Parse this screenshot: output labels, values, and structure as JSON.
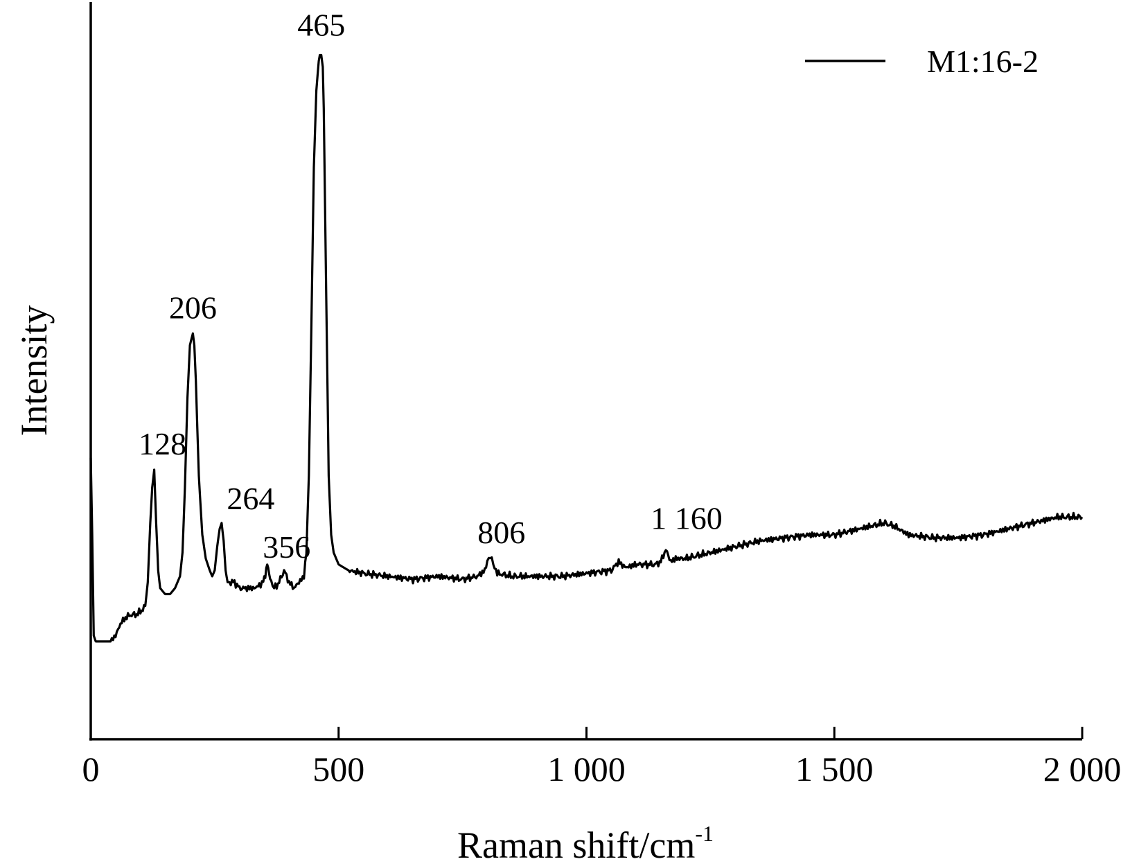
{
  "chart_data": {
    "type": "line",
    "title": "",
    "xlabel": "Raman shift/cm",
    "xlabel_superscript": "-1",
    "ylabel": "Intensity",
    "xlim": [
      0,
      2000
    ],
    "ylim": [
      0,
      100
    ],
    "x_ticks": [
      0,
      500,
      1000,
      1500,
      2000
    ],
    "x_tick_labels": [
      "0",
      "500",
      "1 000",
      "1 500",
      "2 000"
    ],
    "y_ticks_shown": false,
    "grid": false,
    "legend_position": "top-right",
    "series": [
      {
        "name": "M1:16-2",
        "color": "#000000",
        "x": [
          0,
          3,
          6,
          10,
          15,
          20,
          30,
          40,
          50,
          60,
          70,
          80,
          90,
          100,
          110,
          115,
          120,
          124,
          128,
          132,
          136,
          140,
          150,
          160,
          170,
          180,
          185,
          190,
          195,
          200,
          203,
          206,
          209,
          212,
          218,
          225,
          232,
          240,
          245,
          250,
          255,
          260,
          264,
          268,
          272,
          276,
          280,
          290,
          300,
          310,
          320,
          330,
          340,
          348,
          352,
          356,
          360,
          364,
          370,
          380,
          385,
          390,
          395,
          400,
          410,
          420,
          430,
          435,
          440,
          445,
          450,
          455,
          460,
          462,
          465,
          468,
          470,
          475,
          480,
          485,
          490,
          500,
          510,
          520,
          550,
          600,
          650,
          700,
          750,
          780,
          795,
          800,
          806,
          812,
          820,
          850,
          900,
          950,
          1000,
          1050,
          1060,
          1065,
          1070,
          1080,
          1100,
          1120,
          1140,
          1150,
          1155,
          1160,
          1165,
          1170,
          1180,
          1200,
          1250,
          1300,
          1350,
          1400,
          1450,
          1500,
          1550,
          1600,
          1620,
          1650,
          1700,
          1750,
          1800,
          1850,
          1900,
          1950,
          2000
        ],
        "y": [
          33,
          20,
          3,
          2,
          2,
          2,
          2,
          2,
          3,
          5,
          6,
          6.5,
          6.5,
          7,
          8,
          12,
          22,
          28,
          31,
          22,
          14,
          11,
          10,
          10,
          11,
          13,
          17,
          28,
          43,
          52,
          53,
          54,
          52,
          46,
          30,
          20,
          16,
          14,
          13,
          14,
          18,
          21,
          22,
          19,
          14,
          12,
          12,
          12,
          11,
          11,
          11,
          11,
          11.5,
          12,
          13,
          15,
          13,
          12,
          11,
          12,
          13,
          14,
          13,
          12,
          11,
          12,
          13,
          17,
          30,
          55,
          82,
          95,
          100,
          101,
          101,
          99,
          92,
          60,
          30,
          20,
          17,
          15,
          14.5,
          14,
          13.5,
          13,
          12.5,
          13,
          12.5,
          13,
          14,
          15.5,
          16.5,
          15,
          13.5,
          13,
          13,
          13,
          13.5,
          14,
          15,
          15.5,
          15,
          14.5,
          15,
          15,
          15,
          15.5,
          16.5,
          17.5,
          16.5,
          15.5,
          16,
          16,
          17,
          18,
          19,
          19.5,
          20,
          20,
          21,
          22,
          21.5,
          20,
          19.5,
          19.5,
          20,
          21,
          22,
          23,
          23
        ]
      }
    ],
    "annotations": [
      {
        "text": "465",
        "x": 465,
        "y": 101
      },
      {
        "text": "206",
        "x": 206,
        "y": 54
      },
      {
        "text": "128",
        "x": 128,
        "y": 31
      },
      {
        "text": "264",
        "x": 264,
        "y": 22
      },
      {
        "text": "356",
        "x": 356,
        "y": 15
      },
      {
        "text": "806",
        "x": 806,
        "y": 16.5
      },
      {
        "text": "1 160",
        "x": 1160,
        "y": 17.5
      }
    ]
  }
}
